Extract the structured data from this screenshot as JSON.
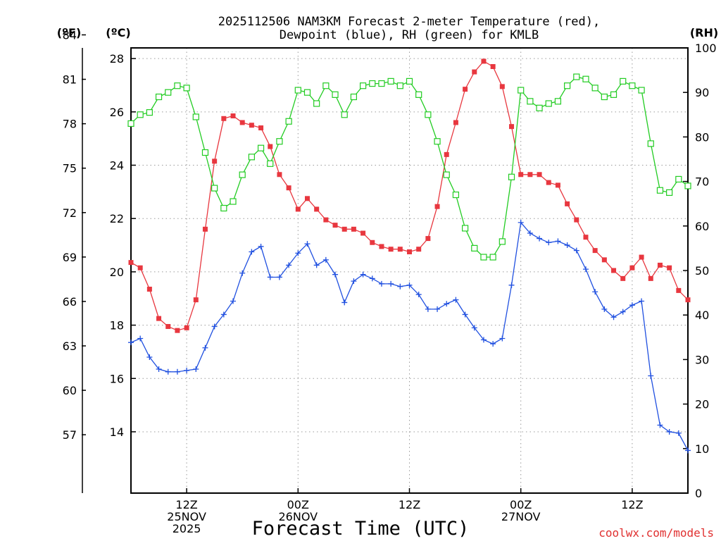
{
  "chart_data": {
    "type": "line",
    "title_line1": "2025112506 NAM3KM Forecast 2-meter Temperature (red),",
    "title_line2": "Dewpoint (blue), RH (green) for KMLB",
    "xlabel": "Forecast Time (UTC)",
    "credit": "coolwx.com/models",
    "unit_labels": {
      "fahrenheit": "(ºF)",
      "celsius": "(ºC)",
      "rh": "(RH)"
    },
    "x_range_hours": [
      0,
      60
    ],
    "x_ticks": [
      {
        "hour": 6,
        "lines": [
          "12Z",
          "25NOV",
          "2025"
        ]
      },
      {
        "hour": 18,
        "lines": [
          "00Z",
          "26NOV"
        ]
      },
      {
        "hour": 30,
        "lines": [
          "12Z"
        ]
      },
      {
        "hour": 42,
        "lines": [
          "00Z",
          "27NOV"
        ]
      },
      {
        "hour": 54,
        "lines": [
          "12Z"
        ]
      }
    ],
    "celsius_axis": {
      "range": [
        11.7,
        28.4
      ],
      "ticks": [
        14,
        16,
        18,
        20,
        22,
        24,
        26,
        28
      ]
    },
    "fahrenheit_axis": {
      "ticks": [
        57,
        60,
        63,
        66,
        69,
        72,
        75,
        78,
        81,
        84
      ]
    },
    "rh_axis": {
      "range": [
        0,
        100
      ],
      "ticks": [
        0,
        10,
        20,
        30,
        40,
        50,
        60,
        70,
        80,
        90,
        100
      ]
    },
    "series": [
      {
        "name": "2-meter Temperature",
        "color": "#e8373f",
        "axis": "celsius",
        "marker": "filled-square",
        "x": [
          0,
          1,
          2,
          3,
          4,
          5,
          6,
          7,
          8,
          9,
          10,
          11,
          12,
          13,
          14,
          15,
          16,
          17,
          18,
          19,
          20,
          21,
          22,
          23,
          24,
          25,
          26,
          27,
          28,
          29,
          30,
          31,
          32,
          33,
          34,
          35,
          36,
          37,
          38,
          39,
          40,
          41,
          42,
          43,
          44,
          45,
          46,
          47,
          48,
          49,
          50,
          51,
          52,
          53,
          54,
          55,
          56,
          57,
          58,
          59,
          60
        ],
        "values": [
          20.35,
          20.15,
          19.35,
          18.25,
          17.95,
          17.8,
          17.9,
          18.95,
          21.6,
          24.15,
          25.75,
          25.85,
          25.6,
          25.5,
          25.4,
          24.7,
          23.65,
          23.15,
          22.35,
          22.75,
          22.35,
          21.95,
          21.75,
          21.6,
          21.6,
          21.45,
          21.1,
          20.95,
          20.85,
          20.85,
          20.75,
          20.85,
          21.25,
          22.45,
          24.4,
          25.6,
          26.85,
          27.5,
          27.9,
          27.7,
          26.95,
          25.45,
          23.65,
          23.65,
          23.65,
          23.35,
          23.25,
          22.55,
          21.95,
          21.3,
          20.8,
          20.45,
          20.05,
          19.75,
          20.15,
          20.55,
          19.75,
          20.25,
          20.15,
          19.3,
          18.95
        ]
      },
      {
        "name": "Dewpoint",
        "color": "#2050e0",
        "axis": "celsius",
        "marker": "plus",
        "x": [
          0,
          1,
          2,
          3,
          4,
          5,
          6,
          7,
          8,
          9,
          10,
          11,
          12,
          13,
          14,
          15,
          16,
          17,
          18,
          19,
          20,
          21,
          22,
          23,
          24,
          25,
          26,
          27,
          28,
          29,
          30,
          31,
          32,
          33,
          34,
          35,
          36,
          37,
          38,
          39,
          40,
          41,
          42,
          43,
          44,
          45,
          46,
          47,
          48,
          49,
          50,
          51,
          52,
          53,
          54,
          55,
          56,
          57,
          58,
          59,
          60
        ],
        "values": [
          17.35,
          17.5,
          16.8,
          16.35,
          16.25,
          16.25,
          16.3,
          16.35,
          17.15,
          17.95,
          18.4,
          18.9,
          19.95,
          20.75,
          20.95,
          19.8,
          19.8,
          20.25,
          20.7,
          21.05,
          20.25,
          20.45,
          19.9,
          18.85,
          19.65,
          19.9,
          19.75,
          19.55,
          19.55,
          19.45,
          19.5,
          19.15,
          18.6,
          18.6,
          18.8,
          18.95,
          18.4,
          17.9,
          17.45,
          17.3,
          17.5,
          19.5,
          21.85,
          21.45,
          21.25,
          21.1,
          21.15,
          21.0,
          20.8,
          20.1,
          19.25,
          18.6,
          18.3,
          18.5,
          18.75,
          18.9,
          16.1,
          14.25,
          14.0,
          13.95,
          13.3
        ]
      },
      {
        "name": "Relative Humidity",
        "color": "#22cc22",
        "axis": "rh",
        "marker": "open-square",
        "x": [
          0,
          1,
          2,
          3,
          4,
          5,
          6,
          7,
          8,
          9,
          10,
          11,
          12,
          13,
          14,
          15,
          16,
          17,
          18,
          19,
          20,
          21,
          22,
          23,
          24,
          25,
          26,
          27,
          28,
          29,
          30,
          31,
          32,
          33,
          34,
          35,
          36,
          37,
          38,
          39,
          40,
          41,
          42,
          43,
          44,
          45,
          46,
          47,
          48,
          49,
          50,
          51,
          52,
          53,
          54,
          55,
          56,
          57,
          58,
          59,
          60
        ],
        "values": [
          83,
          85,
          85.5,
          89,
          90,
          91.5,
          91,
          84.5,
          76.5,
          68.5,
          64,
          65.5,
          71.5,
          75.5,
          77.5,
          74,
          79,
          83.5,
          90.5,
          90,
          87.5,
          91.5,
          89.5,
          85,
          89,
          91.5,
          92,
          92,
          92.5,
          91.5,
          92.5,
          89.5,
          85,
          79,
          71.5,
          67,
          59.5,
          55,
          53,
          53,
          56.5,
          71,
          90.5,
          88,
          86.5,
          87.5,
          88,
          91.5,
          93.5,
          93,
          91,
          89,
          89.5,
          92.5,
          91.5,
          90.5,
          78.5,
          68,
          67.5,
          70.5,
          69
        ]
      }
    ]
  }
}
